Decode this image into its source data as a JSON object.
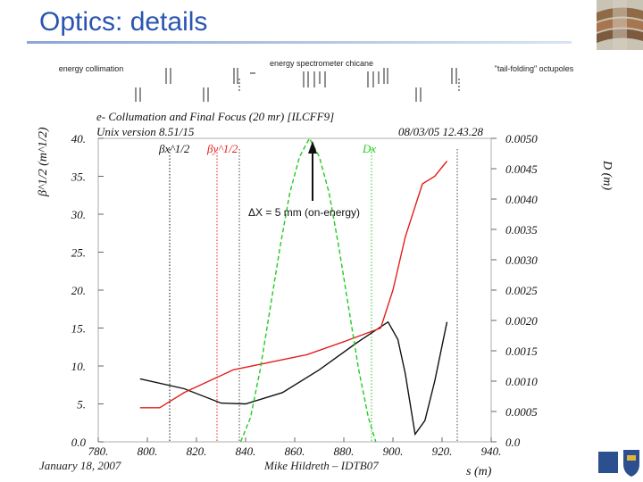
{
  "slide": {
    "title": "Optics: details",
    "footer_date": "January 18, 2007",
    "footer_author": "Mike Hildreth – IDTB07"
  },
  "annotations": {
    "energy_collimation": "energy collimation",
    "chicane": "energy spectrometer chicane",
    "tail_folding": "\"tail-folding\" octupoles",
    "delta_x": "ΔX = 5 mm (on-energy)"
  },
  "chart_data": {
    "type": "line",
    "title": "e- Collumation and Final Focus (20 mr) [ILCFF9]",
    "subtitle": "Unix version 8.51/15",
    "timestamp": "08/03/05  12.43.28",
    "xlabel": "s (m)",
    "ylabel_left": "β^1/2 (m^1/2)",
    "ylabel_right": "D (m)",
    "xlim": [
      780,
      940
    ],
    "ylim_left": [
      0,
      40
    ],
    "ylim_right": [
      0,
      0.005
    ],
    "x_ticks": [
      "780.",
      "800.",
      "820.",
      "840.",
      "860.",
      "880.",
      "900.",
      "920.",
      "940."
    ],
    "y_ticks_left": [
      "0.0",
      "5.",
      "10.",
      "15.",
      "20.",
      "25.",
      "30.",
      "35.",
      "40."
    ],
    "y_ticks_right": [
      "0.0",
      "0.0005",
      "0.0010",
      "0.0015",
      "0.0020",
      "0.0025",
      "0.0030",
      "0.0035",
      "0.0040",
      "0.0045",
      "0.0050"
    ],
    "legend": [
      "βx^1/2",
      "βy^1/2",
      "Dx"
    ],
    "series": [
      {
        "name": "βx^1/2",
        "axis": "left",
        "color": "#111111",
        "x": [
          797,
          815,
          830,
          840,
          855,
          870,
          885,
          898,
          902,
          905,
          909,
          913,
          917,
          922
        ],
        "y": [
          8.3,
          7.0,
          5.1,
          5.0,
          6.5,
          9.5,
          13.0,
          15.8,
          13.5,
          9.0,
          1.0,
          2.8,
          8.0,
          15.8
        ]
      },
      {
        "name": "βy^1/2",
        "axis": "left",
        "color": "#e0201c",
        "x": [
          797,
          805,
          815,
          825,
          835,
          850,
          865,
          880,
          895,
          900,
          905,
          912,
          917,
          922
        ],
        "y": [
          4.5,
          4.5,
          6.5,
          8.0,
          9.5,
          10.5,
          11.5,
          13.2,
          15.0,
          20.0,
          27.0,
          34.0,
          35.0,
          37.0
        ]
      },
      {
        "name": "Dx",
        "axis": "right",
        "color": "#1fcc1f",
        "x": [
          838,
          842,
          846,
          850,
          854,
          858,
          862,
          866,
          870,
          874,
          878,
          882,
          886,
          890,
          893
        ],
        "y": [
          0.0,
          0.0004,
          0.0012,
          0.0022,
          0.0032,
          0.0041,
          0.0047,
          0.005,
          0.0047,
          0.0041,
          0.0032,
          0.0022,
          0.0012,
          0.0004,
          0.0
        ]
      }
    ]
  },
  "colors": {
    "title": "#2a55b0",
    "betax": "#111111",
    "betay": "#e0201c",
    "dx": "#1fcc1f"
  }
}
